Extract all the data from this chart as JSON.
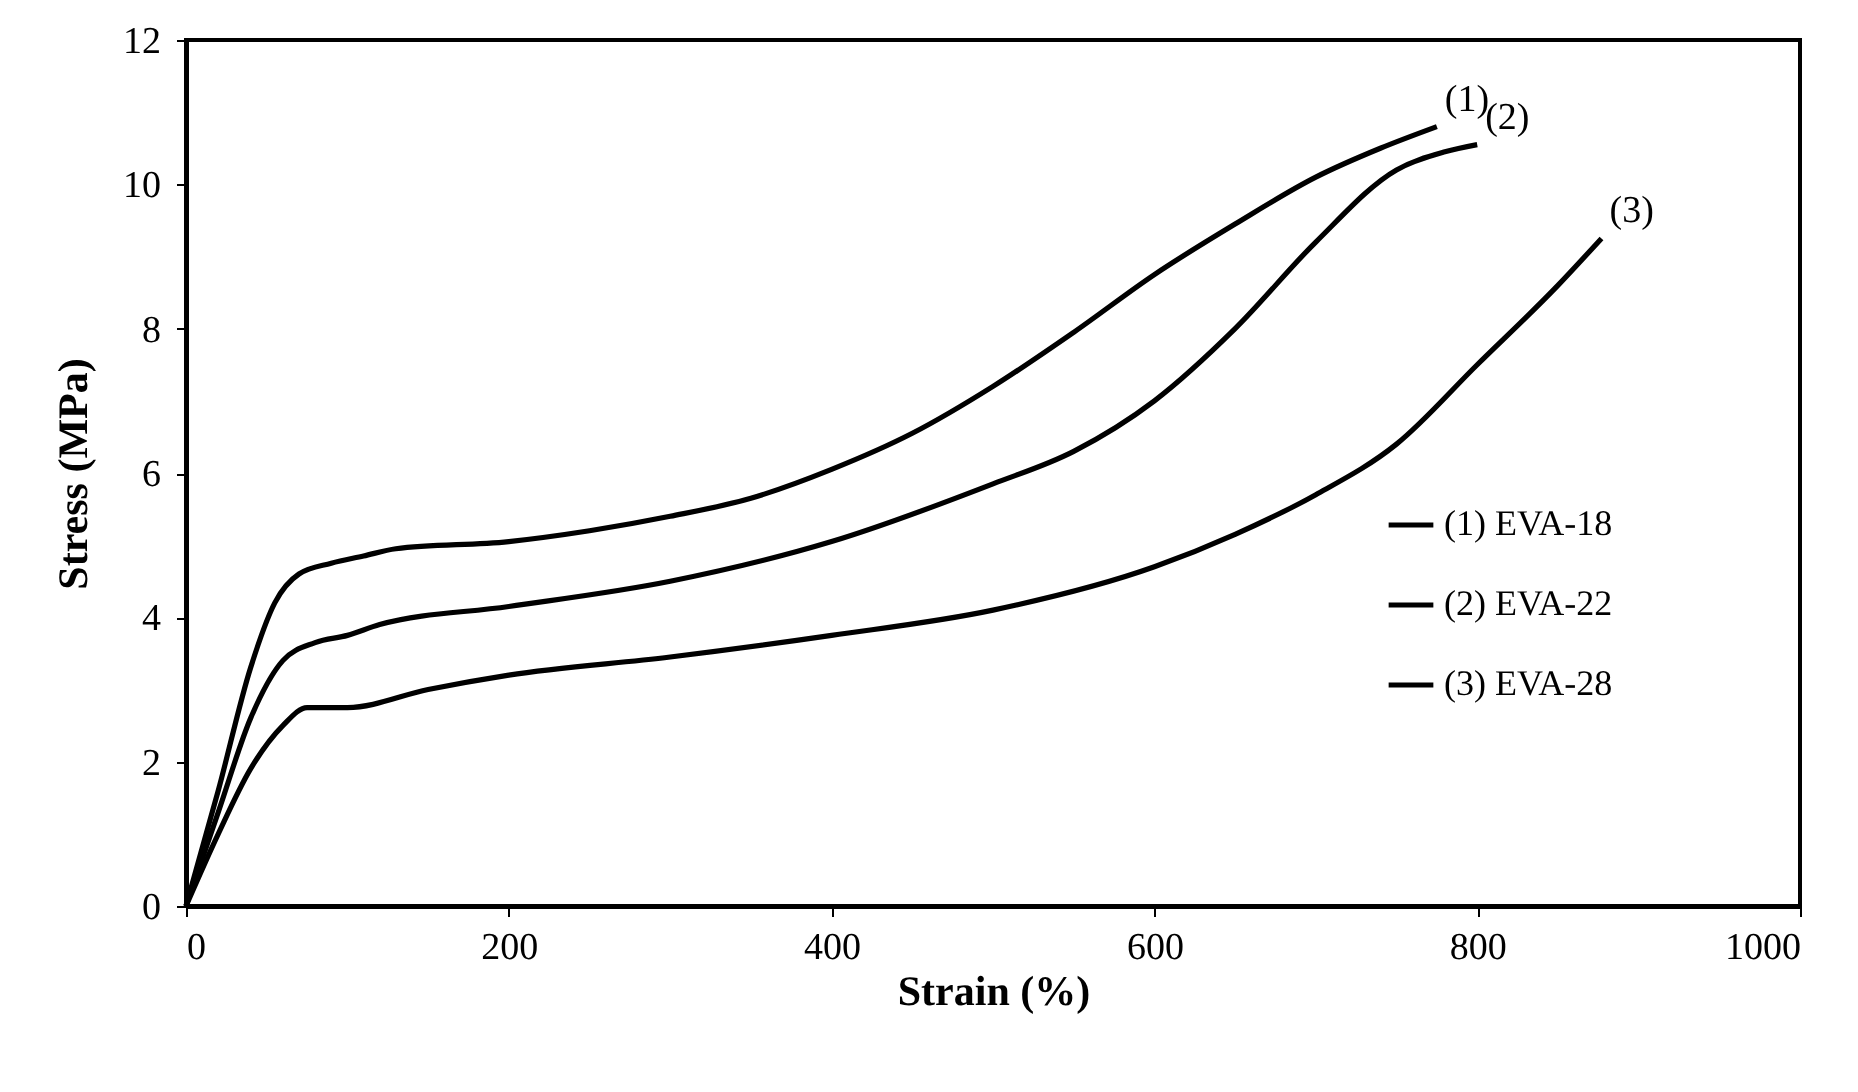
{
  "chart_data": {
    "type": "line",
    "xlabel": "Strain (%)",
    "ylabel": "Stress (MPa)",
    "xlim": [
      0,
      1000
    ],
    "xticks": [
      0,
      200,
      400,
      600,
      800,
      1000
    ],
    "ylim": [
      0,
      12
    ],
    "yticks": [
      0,
      2,
      4,
      6,
      8,
      10,
      12
    ],
    "grid": false,
    "legend": "right",
    "marker": "none",
    "line_style": "solid",
    "annotations": [
      {
        "text": "(1)",
        "x": 775,
        "y": 10.8
      },
      {
        "text": "(2)",
        "x": 800,
        "y": 10.55
      },
      {
        "text": "(3)",
        "x": 877,
        "y": 9.25
      }
    ],
    "series": [
      {
        "name": "(1) EVA-18",
        "color": "#000000",
        "x": [
          0,
          20,
          40,
          55,
          70,
          90,
          110,
          130,
          200,
          250,
          300,
          350,
          400,
          450,
          500,
          550,
          600,
          650,
          700,
          740,
          775
        ],
        "values": [
          0,
          1.6,
          3.3,
          4.2,
          4.6,
          4.75,
          4.85,
          4.95,
          5.05,
          5.2,
          5.4,
          5.65,
          6.05,
          6.55,
          7.2,
          7.95,
          8.75,
          9.45,
          10.1,
          10.5,
          10.8
        ]
      },
      {
        "name": "(2) EVA-22",
        "color": "#000000",
        "x": [
          0,
          20,
          40,
          60,
          80,
          100,
          120,
          200,
          300,
          400,
          500,
          550,
          600,
          650,
          700,
          750,
          780,
          800
        ],
        "values": [
          0,
          1.3,
          2.6,
          3.4,
          3.65,
          3.75,
          3.9,
          4.15,
          4.5,
          5.05,
          5.85,
          6.3,
          7.0,
          8.0,
          9.2,
          10.2,
          10.45,
          10.55
        ]
      },
      {
        "name": "(3) EVA-28",
        "color": "#000000",
        "x": [
          0,
          20,
          40,
          60,
          75,
          100,
          150,
          200,
          300,
          400,
          500,
          600,
          650,
          700,
          750,
          800,
          850,
          877
        ],
        "values": [
          0,
          1.0,
          1.9,
          2.5,
          2.75,
          2.75,
          3.0,
          3.2,
          3.45,
          3.75,
          4.1,
          4.7,
          5.15,
          5.7,
          6.4,
          7.5,
          8.6,
          9.25
        ]
      }
    ]
  }
}
